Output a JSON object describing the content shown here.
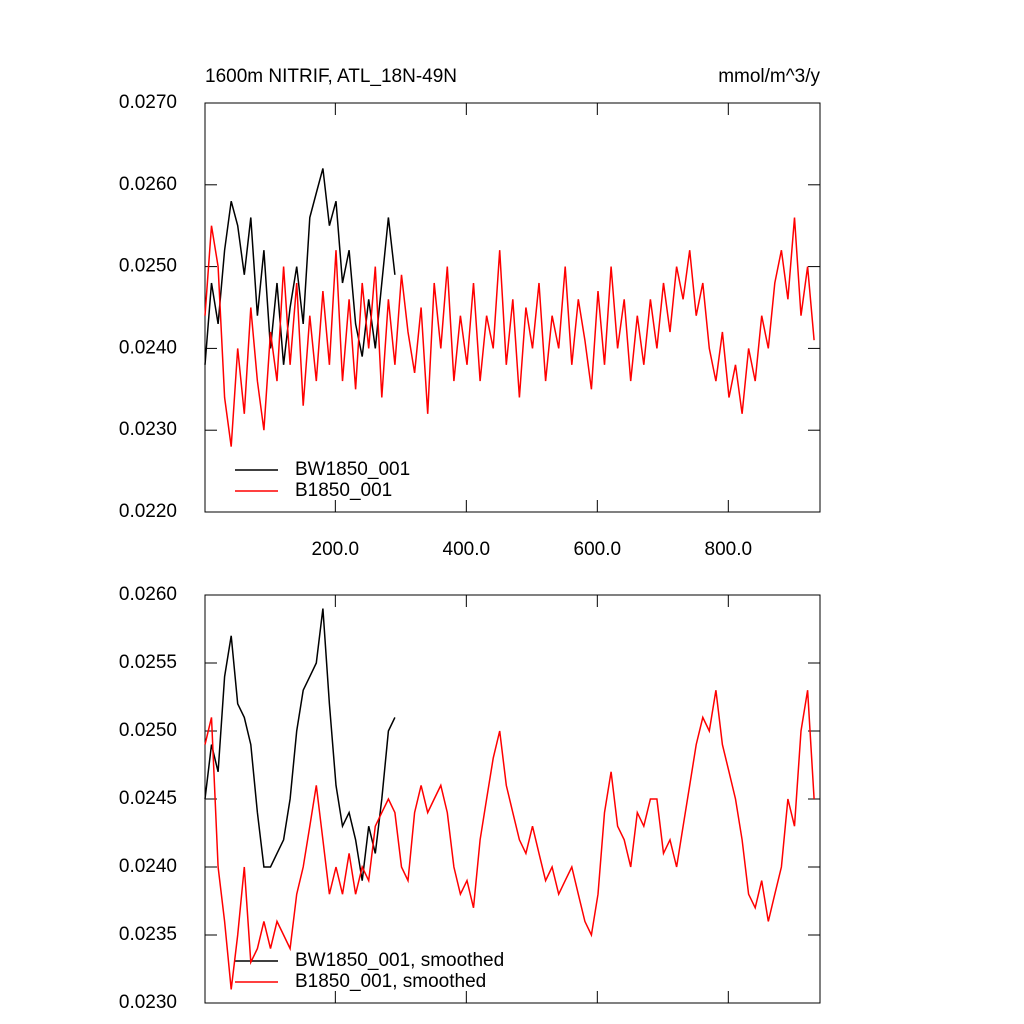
{
  "chart_data": [
    {
      "type": "line",
      "title": "1600m NITRIF, ATL_18N-49N",
      "units": "mmol/m^3/y",
      "xlim": [
        1,
        940
      ],
      "ylim": [
        0.022,
        0.027
      ],
      "xticks": [
        {
          "value": 200,
          "label": "200.0"
        },
        {
          "value": 400,
          "label": "400.0"
        },
        {
          "value": 600,
          "label": "600.0"
        },
        {
          "value": 800,
          "label": "800.0"
        }
      ],
      "yticks": [
        {
          "value": 0.022,
          "label": "0.0220"
        },
        {
          "value": 0.023,
          "label": "0.0230"
        },
        {
          "value": 0.024,
          "label": "0.0240"
        },
        {
          "value": 0.025,
          "label": "0.0250"
        },
        {
          "value": 0.026,
          "label": "0.0260"
        },
        {
          "value": 0.027,
          "label": "0.0270"
        }
      ],
      "series": [
        {
          "name": "BW1850_001",
          "color": "#000000",
          "x": [
            1,
            11,
            21,
            31,
            41,
            51,
            61,
            71,
            81,
            91,
            101,
            111,
            121,
            131,
            141,
            151,
            161,
            171,
            181,
            191,
            201,
            211,
            221,
            231,
            241,
            251,
            261,
            271,
            281,
            291
          ],
          "values": [
            0.0238,
            0.0248,
            0.0243,
            0.0252,
            0.0258,
            0.0255,
            0.0249,
            0.0256,
            0.0244,
            0.0252,
            0.024,
            0.0248,
            0.0238,
            0.0245,
            0.025,
            0.0243,
            0.0256,
            0.0259,
            0.0262,
            0.0255,
            0.0258,
            0.0248,
            0.0252,
            0.0243,
            0.0239,
            0.0246,
            0.024,
            0.0248,
            0.0256,
            0.0249
          ]
        },
        {
          "name": "B1850_001",
          "color": "#ff0000",
          "x": [
            1,
            11,
            21,
            31,
            41,
            51,
            61,
            71,
            81,
            91,
            101,
            111,
            121,
            131,
            141,
            151,
            161,
            171,
            181,
            191,
            201,
            211,
            221,
            231,
            241,
            251,
            261,
            271,
            281,
            291,
            301,
            311,
            321,
            331,
            341,
            351,
            361,
            371,
            381,
            391,
            401,
            411,
            421,
            431,
            441,
            451,
            461,
            471,
            481,
            491,
            501,
            511,
            521,
            531,
            541,
            551,
            561,
            571,
            581,
            591,
            601,
            611,
            621,
            631,
            641,
            651,
            661,
            671,
            681,
            691,
            701,
            711,
            721,
            731,
            741,
            751,
            761,
            771,
            781,
            791,
            801,
            811,
            821,
            831,
            841,
            851,
            861,
            871,
            881,
            891,
            901,
            911,
            921,
            931
          ],
          "values": [
            0.0244,
            0.0255,
            0.025,
            0.0234,
            0.0228,
            0.024,
            0.0232,
            0.0245,
            0.0236,
            0.023,
            0.0242,
            0.0236,
            0.025,
            0.0238,
            0.0248,
            0.0233,
            0.0244,
            0.0236,
            0.0247,
            0.0238,
            0.0252,
            0.0236,
            0.0246,
            0.0235,
            0.0248,
            0.024,
            0.025,
            0.0234,
            0.0246,
            0.0238,
            0.0249,
            0.0242,
            0.0237,
            0.0245,
            0.0232,
            0.0248,
            0.024,
            0.025,
            0.0236,
            0.0244,
            0.0238,
            0.0248,
            0.0236,
            0.0244,
            0.024,
            0.0252,
            0.0238,
            0.0246,
            0.0234,
            0.0245,
            0.024,
            0.0248,
            0.0236,
            0.0244,
            0.024,
            0.025,
            0.0238,
            0.0246,
            0.0241,
            0.0235,
            0.0247,
            0.0238,
            0.025,
            0.024,
            0.0246,
            0.0236,
            0.0244,
            0.0238,
            0.0246,
            0.024,
            0.0248,
            0.0242,
            0.025,
            0.0246,
            0.0252,
            0.0244,
            0.0248,
            0.024,
            0.0236,
            0.0242,
            0.0234,
            0.0238,
            0.0232,
            0.024,
            0.0236,
            0.0244,
            0.024,
            0.0248,
            0.0252,
            0.0246,
            0.0256,
            0.0244,
            0.025,
            0.0241
          ]
        }
      ]
    },
    {
      "type": "line",
      "xlim": [
        1,
        940
      ],
      "ylim": [
        0.023,
        0.026
      ],
      "xticks": [
        200,
        400,
        600,
        800
      ],
      "xtick_labels": false,
      "yticks": [
        {
          "value": 0.023,
          "label": "0.0230"
        },
        {
          "value": 0.0235,
          "label": "0.0235"
        },
        {
          "value": 0.024,
          "label": "0.0240"
        },
        {
          "value": 0.0245,
          "label": "0.0245"
        },
        {
          "value": 0.025,
          "label": "0.0250"
        },
        {
          "value": 0.0255,
          "label": "0.0255"
        },
        {
          "value": 0.026,
          "label": "0.0260"
        }
      ],
      "series": [
        {
          "name": "BW1850_001, smoothed",
          "color": "#000000",
          "x": [
            1,
            11,
            21,
            31,
            41,
            51,
            61,
            71,
            81,
            91,
            101,
            111,
            121,
            131,
            141,
            151,
            161,
            171,
            181,
            191,
            201,
            211,
            221,
            231,
            241,
            251,
            261,
            271,
            281,
            291
          ],
          "values": [
            0.0245,
            0.0249,
            0.0247,
            0.0254,
            0.0257,
            0.0252,
            0.0251,
            0.0249,
            0.0244,
            0.024,
            0.024,
            0.0241,
            0.0242,
            0.0245,
            0.025,
            0.0253,
            0.0254,
            0.0255,
            0.0259,
            0.0252,
            0.0246,
            0.0243,
            0.0244,
            0.0242,
            0.0239,
            0.0243,
            0.0241,
            0.0245,
            0.025,
            0.0251
          ]
        },
        {
          "name": "B1850_001, smoothed",
          "color": "#ff0000",
          "x": [
            1,
            11,
            21,
            31,
            41,
            51,
            61,
            71,
            81,
            91,
            101,
            111,
            121,
            131,
            141,
            151,
            161,
            171,
            181,
            191,
            201,
            211,
            221,
            231,
            241,
            251,
            261,
            271,
            281,
            291,
            301,
            311,
            321,
            331,
            341,
            351,
            361,
            371,
            381,
            391,
            401,
            411,
            421,
            431,
            441,
            451,
            461,
            471,
            481,
            491,
            501,
            511,
            521,
            531,
            541,
            551,
            561,
            571,
            581,
            591,
            601,
            611,
            621,
            631,
            641,
            651,
            661,
            671,
            681,
            691,
            701,
            711,
            721,
            731,
            741,
            751,
            761,
            771,
            781,
            791,
            801,
            811,
            821,
            831,
            841,
            851,
            861,
            871,
            881,
            891,
            901,
            911,
            921,
            931
          ],
          "values": [
            0.0249,
            0.0251,
            0.024,
            0.0236,
            0.0231,
            0.0235,
            0.024,
            0.0233,
            0.0234,
            0.0236,
            0.0234,
            0.0236,
            0.0235,
            0.0234,
            0.0238,
            0.024,
            0.0243,
            0.0246,
            0.0242,
            0.0238,
            0.024,
            0.0238,
            0.0241,
            0.0238,
            0.024,
            0.0239,
            0.0243,
            0.0244,
            0.0245,
            0.0244,
            0.024,
            0.0239,
            0.0244,
            0.0246,
            0.0244,
            0.0245,
            0.0246,
            0.0244,
            0.024,
            0.0238,
            0.0239,
            0.0237,
            0.0242,
            0.0245,
            0.0248,
            0.025,
            0.0246,
            0.0244,
            0.0242,
            0.0241,
            0.0243,
            0.0241,
            0.0239,
            0.024,
            0.0238,
            0.0239,
            0.024,
            0.0238,
            0.0236,
            0.0235,
            0.0238,
            0.0244,
            0.0247,
            0.0243,
            0.0242,
            0.024,
            0.0244,
            0.0243,
            0.0245,
            0.0245,
            0.0241,
            0.0242,
            0.024,
            0.0243,
            0.0246,
            0.0249,
            0.0251,
            0.025,
            0.0253,
            0.0249,
            0.0247,
            0.0245,
            0.0242,
            0.0238,
            0.0237,
            0.0239,
            0.0236,
            0.0238,
            0.024,
            0.0245,
            0.0243,
            0.025,
            0.0253,
            0.0245
          ]
        }
      ]
    }
  ]
}
